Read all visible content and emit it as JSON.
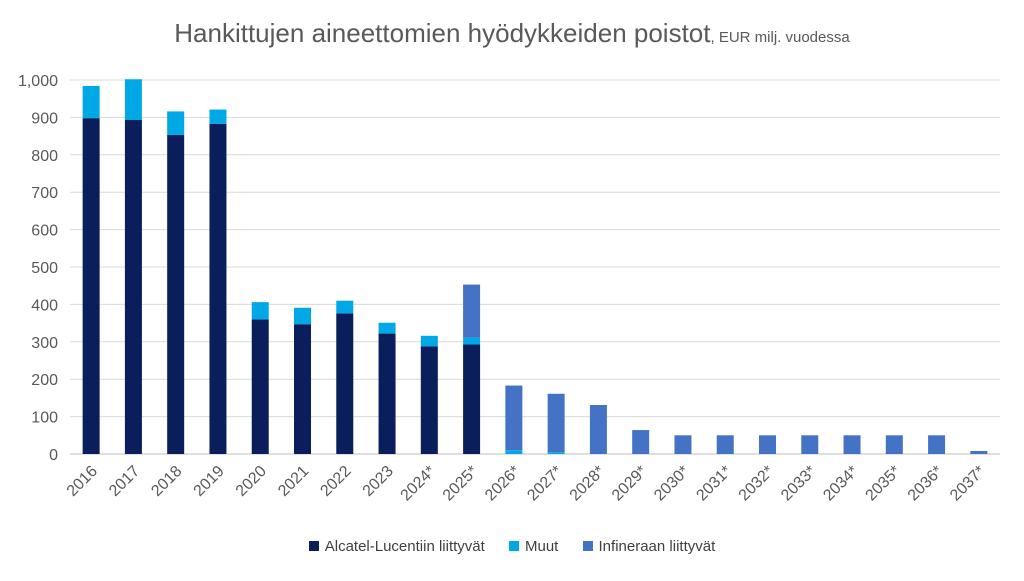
{
  "chart_data": {
    "type": "bar",
    "stacked": true,
    "title": "Hankittujen aineettomien hyödykkeiden poistot",
    "subtitle": ", EUR milj. vuodessa",
    "categories": [
      "2016",
      "2017",
      "2018",
      "2019",
      "2020",
      "2021",
      "2022",
      "2023",
      "2024*",
      "2025*",
      "2026*",
      "2027*",
      "2028*",
      "2029*",
      "2030*",
      "2031*",
      "2032*",
      "2033*",
      "2034*",
      "2035*",
      "2036*",
      "2037*"
    ],
    "series": [
      {
        "name": "Alcatel-Lucentiin liittyvät",
        "color": "#0a1e5c",
        "values": [
          898,
          893,
          853,
          883,
          360,
          347,
          376,
          322,
          288,
          293,
          0,
          0,
          0,
          0,
          0,
          0,
          0,
          0,
          0,
          0,
          0,
          0
        ]
      },
      {
        "name": "Muut",
        "color": "#00a9e6",
        "values": [
          86,
          109,
          63,
          38,
          46,
          44,
          34,
          29,
          28,
          18,
          10,
          5,
          0,
          0,
          0,
          0,
          0,
          0,
          0,
          0,
          0,
          0
        ]
      },
      {
        "name": "Infineraan liittyvät",
        "color": "#4472c4",
        "values": [
          0,
          0,
          0,
          0,
          0,
          0,
          0,
          0,
          0,
          142,
          173,
          156,
          131,
          64,
          50,
          50,
          50,
          50,
          50,
          50,
          50,
          8
        ]
      }
    ],
    "ylim": [
      0,
      1000
    ],
    "yticks": [
      0,
      100,
      200,
      300,
      400,
      500,
      600,
      700,
      800,
      900,
      1000
    ],
    "ytick_labels": [
      "0",
      "100",
      "200",
      "300",
      "400",
      "500",
      "600",
      "700",
      "800",
      "900",
      "1,000"
    ],
    "xlabel": "",
    "ylabel": "",
    "grid": true,
    "legend_position": "bottom"
  }
}
